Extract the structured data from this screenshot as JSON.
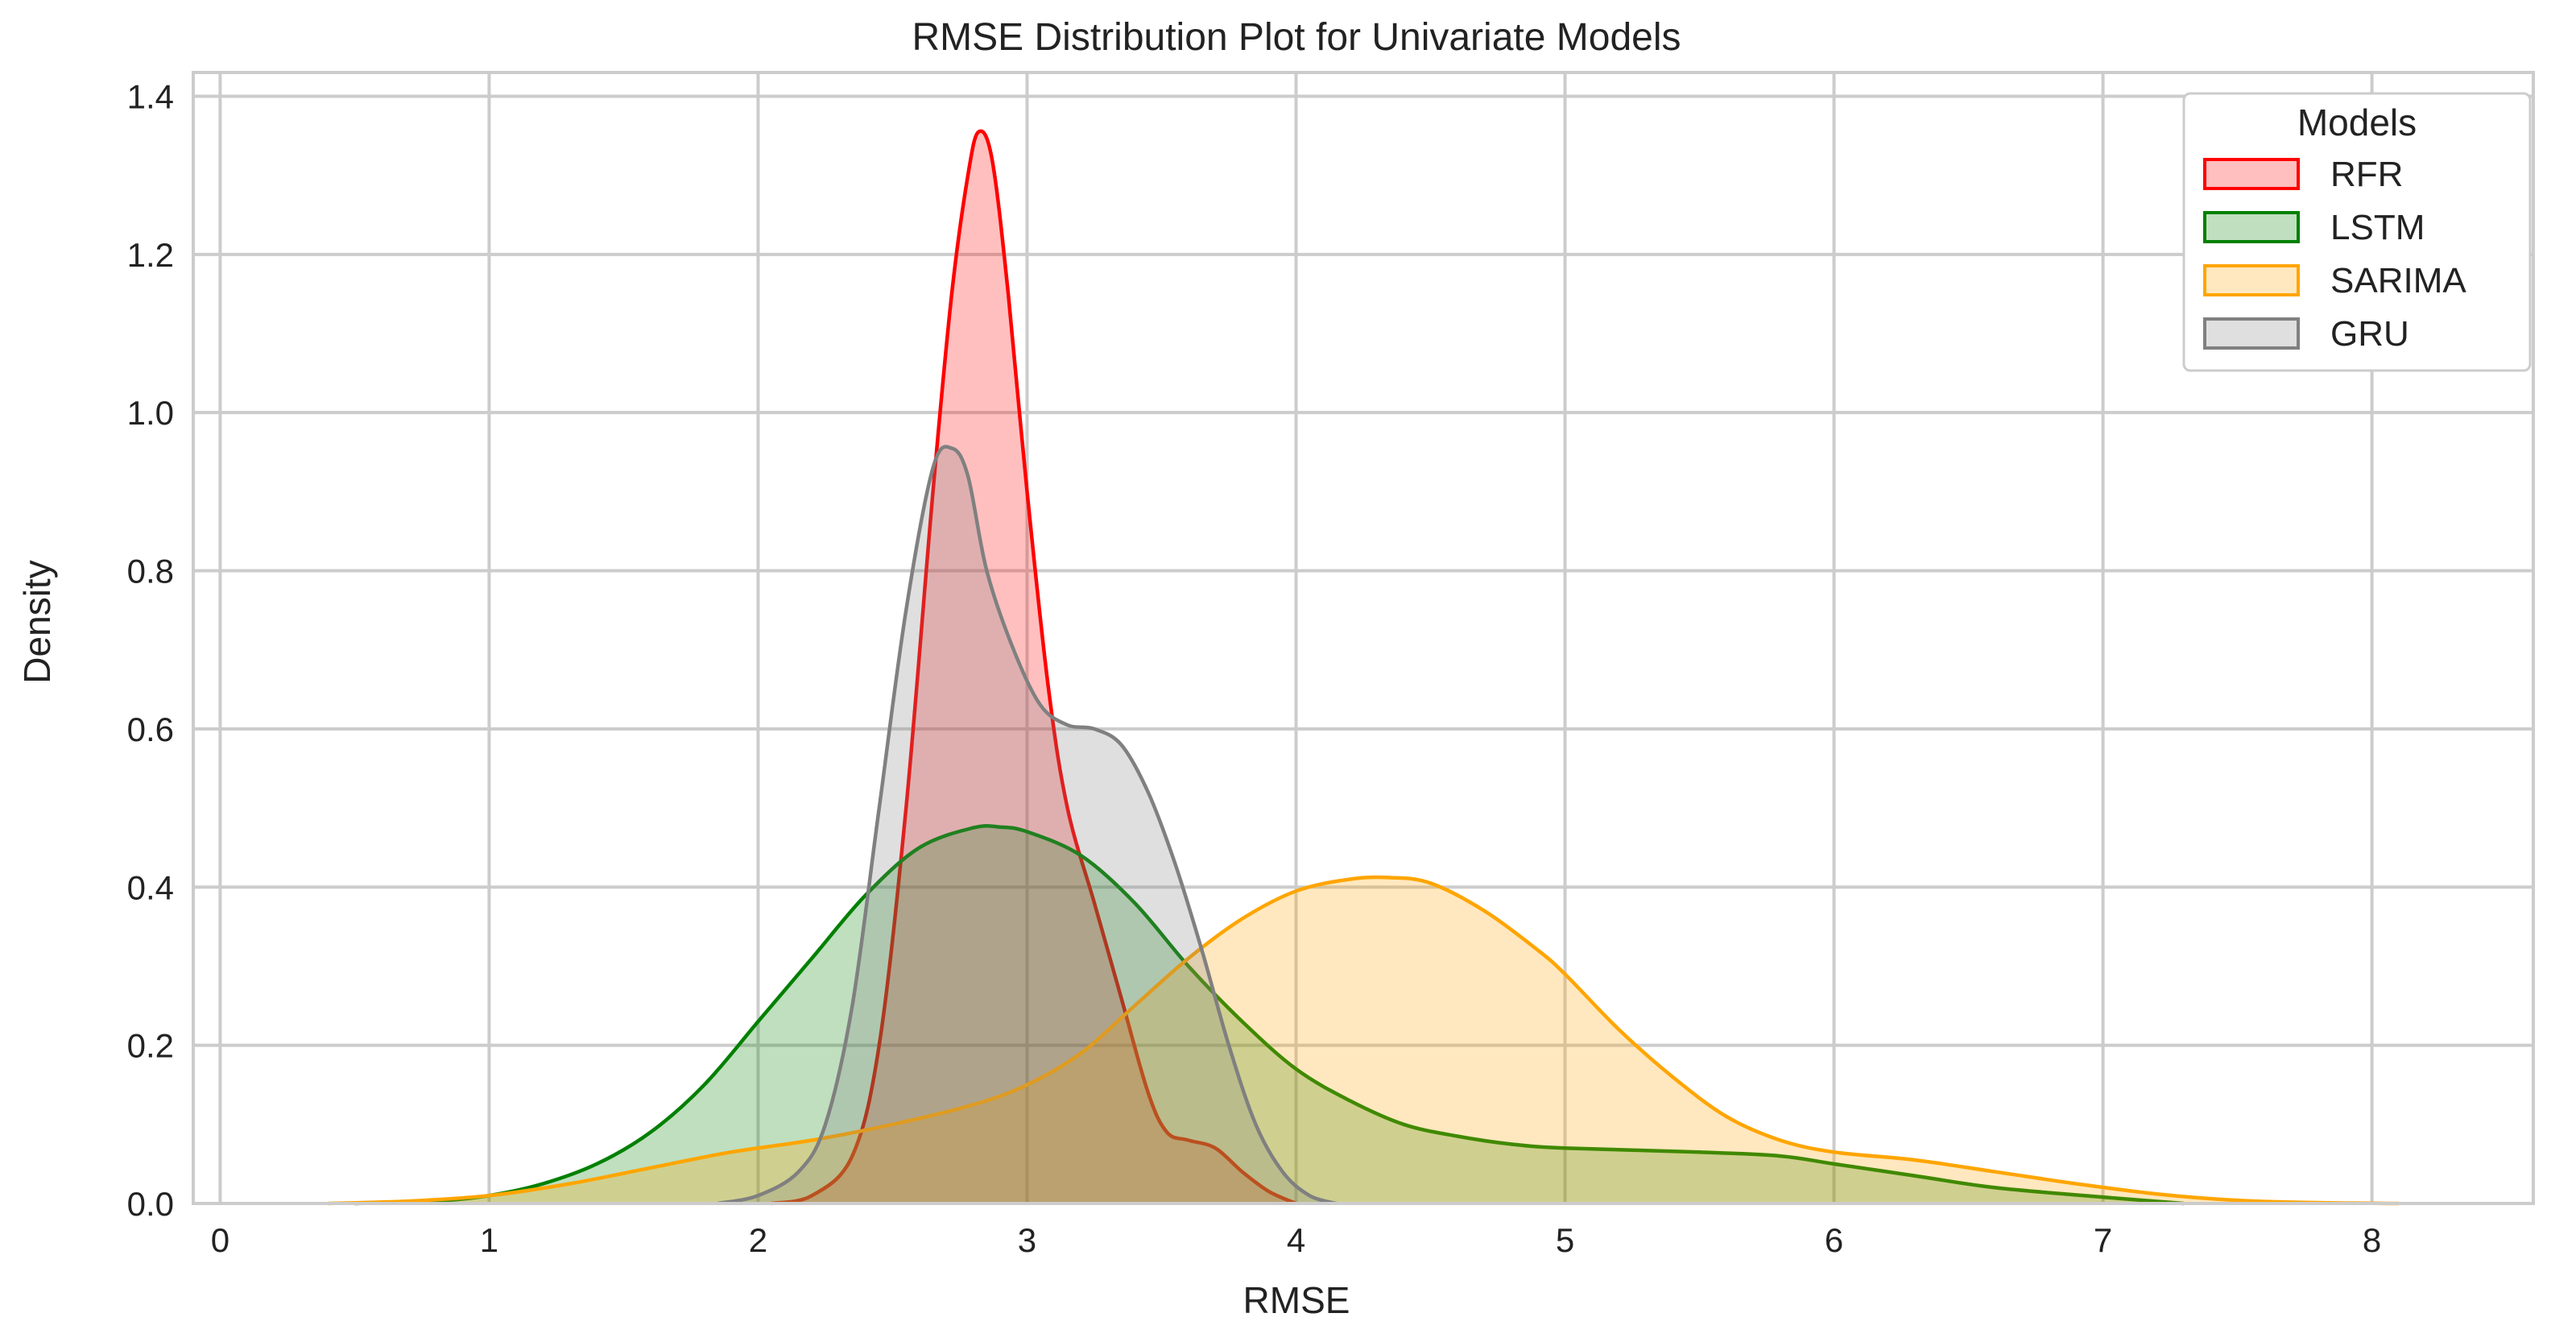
{
  "chart_data": {
    "type": "area",
    "title": "RMSE Distribution Plot for Univariate Models",
    "xlabel": "RMSE",
    "ylabel": "Density",
    "xlim": [
      -0.1,
      8.6
    ],
    "ylim": [
      0,
      1.43
    ],
    "x_ticks": [
      0,
      1,
      2,
      3,
      4,
      5,
      6,
      7,
      8
    ],
    "y_ticks": [
      0.0,
      0.2,
      0.4,
      0.6,
      0.8,
      1.0,
      1.2,
      1.4
    ],
    "x_tick_labels": [
      "0",
      "1",
      "2",
      "3",
      "4",
      "5",
      "6",
      "7",
      "8"
    ],
    "y_tick_labels": [
      "0.0",
      "0.2",
      "0.4",
      "0.6",
      "0.8",
      "1.0",
      "1.2",
      "1.4"
    ],
    "grid": true,
    "legend": {
      "title": "Models",
      "placement": "top-right"
    },
    "series": [
      {
        "name": "RFR",
        "color": "#ff0000",
        "points": [
          [
            2.05,
            0.0
          ],
          [
            2.2,
            0.01
          ],
          [
            2.35,
            0.06
          ],
          [
            2.45,
            0.2
          ],
          [
            2.55,
            0.5
          ],
          [
            2.65,
            0.9
          ],
          [
            2.72,
            1.15
          ],
          [
            2.78,
            1.3
          ],
          [
            2.82,
            1.355
          ],
          [
            2.87,
            1.32
          ],
          [
            2.93,
            1.15
          ],
          [
            3.0,
            0.9
          ],
          [
            3.08,
            0.65
          ],
          [
            3.15,
            0.5
          ],
          [
            3.25,
            0.38
          ],
          [
            3.35,
            0.26
          ],
          [
            3.45,
            0.14
          ],
          [
            3.52,
            0.09
          ],
          [
            3.6,
            0.08
          ],
          [
            3.7,
            0.07
          ],
          [
            3.8,
            0.04
          ],
          [
            3.9,
            0.015
          ],
          [
            4.0,
            0.0
          ]
        ]
      },
      {
        "name": "LSTM",
        "color": "#008000",
        "points": [
          [
            0.5,
            0.0
          ],
          [
            0.8,
            0.003
          ],
          [
            1.0,
            0.01
          ],
          [
            1.2,
            0.025
          ],
          [
            1.4,
            0.05
          ],
          [
            1.6,
            0.09
          ],
          [
            1.8,
            0.15
          ],
          [
            2.0,
            0.23
          ],
          [
            2.2,
            0.31
          ],
          [
            2.4,
            0.39
          ],
          [
            2.6,
            0.45
          ],
          [
            2.8,
            0.475
          ],
          [
            2.9,
            0.476
          ],
          [
            3.0,
            0.47
          ],
          [
            3.2,
            0.44
          ],
          [
            3.4,
            0.38
          ],
          [
            3.6,
            0.3
          ],
          [
            3.8,
            0.23
          ],
          [
            4.0,
            0.17
          ],
          [
            4.2,
            0.13
          ],
          [
            4.4,
            0.1
          ],
          [
            4.6,
            0.085
          ],
          [
            4.8,
            0.075
          ],
          [
            5.0,
            0.07
          ],
          [
            5.5,
            0.065
          ],
          [
            5.8,
            0.06
          ],
          [
            6.0,
            0.05
          ],
          [
            6.3,
            0.035
          ],
          [
            6.6,
            0.02
          ],
          [
            7.0,
            0.008
          ],
          [
            7.3,
            0.0
          ]
        ]
      },
      {
        "name": "SARIMA",
        "color": "#ffa500",
        "points": [
          [
            0.4,
            0.0
          ],
          [
            0.7,
            0.003
          ],
          [
            1.0,
            0.01
          ],
          [
            1.3,
            0.025
          ],
          [
            1.6,
            0.045
          ],
          [
            1.9,
            0.065
          ],
          [
            2.2,
            0.08
          ],
          [
            2.5,
            0.1
          ],
          [
            2.8,
            0.125
          ],
          [
            3.0,
            0.15
          ],
          [
            3.2,
            0.19
          ],
          [
            3.4,
            0.25
          ],
          [
            3.6,
            0.31
          ],
          [
            3.8,
            0.36
          ],
          [
            4.0,
            0.395
          ],
          [
            4.2,
            0.41
          ],
          [
            4.35,
            0.412
          ],
          [
            4.5,
            0.405
          ],
          [
            4.7,
            0.37
          ],
          [
            4.9,
            0.32
          ],
          [
            5.0,
            0.29
          ],
          [
            5.2,
            0.22
          ],
          [
            5.4,
            0.16
          ],
          [
            5.6,
            0.11
          ],
          [
            5.8,
            0.08
          ],
          [
            6.0,
            0.065
          ],
          [
            6.3,
            0.055
          ],
          [
            6.6,
            0.04
          ],
          [
            6.9,
            0.025
          ],
          [
            7.2,
            0.012
          ],
          [
            7.5,
            0.004
          ],
          [
            7.8,
            0.001
          ],
          [
            8.1,
            0.0
          ]
        ]
      },
      {
        "name": "GRU",
        "color": "#808080",
        "points": [
          [
            1.85,
            0.0
          ],
          [
            2.0,
            0.01
          ],
          [
            2.15,
            0.04
          ],
          [
            2.25,
            0.1
          ],
          [
            2.35,
            0.25
          ],
          [
            2.45,
            0.5
          ],
          [
            2.55,
            0.75
          ],
          [
            2.65,
            0.93
          ],
          [
            2.72,
            0.955
          ],
          [
            2.78,
            0.92
          ],
          [
            2.85,
            0.8
          ],
          [
            2.95,
            0.7
          ],
          [
            3.05,
            0.63
          ],
          [
            3.15,
            0.605
          ],
          [
            3.25,
            0.6
          ],
          [
            3.35,
            0.58
          ],
          [
            3.45,
            0.52
          ],
          [
            3.55,
            0.43
          ],
          [
            3.65,
            0.32
          ],
          [
            3.75,
            0.2
          ],
          [
            3.85,
            0.1
          ],
          [
            3.95,
            0.04
          ],
          [
            4.05,
            0.01
          ],
          [
            4.15,
            0.0
          ]
        ]
      }
    ]
  }
}
